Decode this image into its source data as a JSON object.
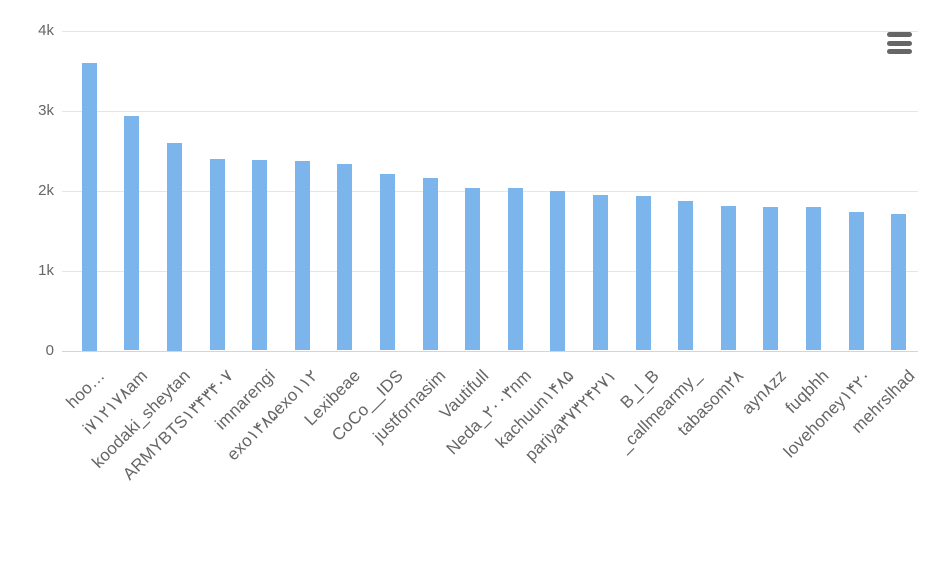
{
  "chart": {
    "menu_icon": "hamburger-icon",
    "colors": {
      "bar": "#7cb5ec",
      "grid": "#e6e6e6",
      "axis_line": "#ccd6eb",
      "label_text": "#666666",
      "icon": "#666666"
    }
  },
  "chart_data": {
    "type": "bar",
    "title": "",
    "xlabel": "",
    "ylabel": "",
    "legend": false,
    "grid": true,
    "x_label_rotation": -45,
    "ylim": [
      0,
      4000
    ],
    "yticks": [
      {
        "value": 0,
        "label": "0"
      },
      {
        "value": 1000,
        "label": "1k"
      },
      {
        "value": 2000,
        "label": "2k"
      },
      {
        "value": 3000,
        "label": "3k"
      },
      {
        "value": 4000,
        "label": "4k"
      }
    ],
    "categories": [
      "hoo…",
      "i۷۱۲۱۷۸am",
      "koodaki_sheytan",
      "ARMYBTS۱۳۴۳۴۰۷",
      "imnarengi",
      "exo۱۴۸۵exo۱۱۲",
      "Lexibeae",
      "CoCo__IDS",
      "justfornasim",
      "Vautifull",
      "Neda_۲۰۰۳nm",
      "kachuun۱۴۸۵",
      "pariya۳۷۳۲۴۲۷۱",
      "B_l_B",
      "_callmearmy_",
      "tabasom۲۸",
      "ayn۸zz",
      "fuqbhh",
      "lovehoney۱۴۲۰",
      "mehrslhad"
    ],
    "values": [
      3600,
      2930,
      2600,
      2390,
      2380,
      2370,
      2330,
      2210,
      2160,
      2030,
      2030,
      2000,
      1940,
      1930,
      1870,
      1810,
      1790,
      1790,
      1730,
      1710
    ]
  }
}
